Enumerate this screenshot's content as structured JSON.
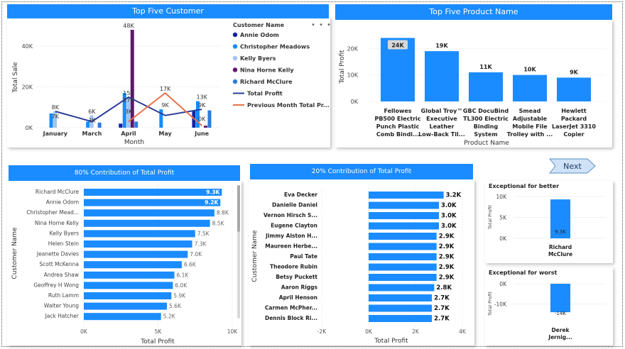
{
  "colors": {
    "accent": "#1a8cff",
    "annie": "#12239e",
    "christopher": "#118dff",
    "kelly": "#a0c4f0",
    "nina": "#5c1a6b",
    "richard": "#2b7be0",
    "total_profit_line": "#2c3e9a",
    "prev_month_line": "#e8704a"
  },
  "top_customer": {
    "title": "Top Five Customer",
    "legend_title": "Customer Name",
    "more_icon": "more-options-icon",
    "chart_data": {
      "type": "bar",
      "categories": [
        "January",
        "March",
        "April",
        "May",
        "June"
      ],
      "xlabel": "Month",
      "ylabel": "Total Sale",
      "ylim": [
        0,
        48000
      ],
      "yticks": [
        "0K",
        "20K",
        "40K"
      ],
      "series": [
        {
          "name": "Annie Odom",
          "values": [
            null,
            null,
            2000,
            null,
            8500
          ]
        },
        {
          "name": "Christopher Meadows",
          "values": [
            7000,
            3000,
            17000,
            9000,
            13000
          ]
        },
        {
          "name": "Kelly Byers",
          "values": [
            8000,
            6000,
            15000,
            null,
            null
          ]
        },
        {
          "name": "Nina Horne Kelly",
          "values": [
            null,
            null,
            48000,
            null,
            1000
          ]
        },
        {
          "name": "Richard McClure",
          "values": [
            null,
            2500,
            3000,
            null,
            8500
          ]
        },
        {
          "name": "Total Profit",
          "type": "line",
          "values": [
            8000,
            3000,
            15000,
            6000,
            9000
          ]
        },
        {
          "name": "Previous Month Total Pr...",
          "type": "line",
          "values": [
            null,
            null,
            3000,
            17000,
            1000
          ]
        }
      ],
      "labels": [
        {
          "text": "8K",
          "cat": 0,
          "y": 8000
        },
        {
          "text": "7K",
          "cat": 0,
          "y": 3500
        },
        {
          "text": "6K",
          "cat": 1,
          "y": 6000
        },
        {
          "text": "3K",
          "cat": 1,
          "y": 1600
        },
        {
          "text": "48K",
          "cat": 2,
          "y": 48000
        },
        {
          "text": "15K",
          "cat": 2,
          "y": 15000
        },
        {
          "text": "17K",
          "cat": 2,
          "y": 11700
        },
        {
          "text": "3K",
          "cat": 2,
          "y": 5900
        },
        {
          "text": "17K",
          "cat": 3,
          "y": 17000
        },
        {
          "text": "9K",
          "cat": 3,
          "y": 9000
        },
        {
          "text": "13K",
          "cat": 4,
          "y": 13000
        },
        {
          "text": "9K",
          "cat": 4,
          "y": 9000
        },
        {
          "text": "0K",
          "cat": 4,
          "y": 2300
        }
      ]
    }
  },
  "top_product": {
    "title": "Top Five Product Name",
    "chart_data": {
      "type": "bar",
      "categories": [
        [
          "Fellowes",
          "PB500 Electric",
          "Punch Plastic",
          "Comb Bindi..."
        ],
        [
          "Global Troy™",
          "Executive",
          "Leather",
          "Low-Back Til..."
        ],
        [
          "GBC DocuBind",
          "TL300 Electric",
          "Binding",
          "System"
        ],
        [
          "Smead",
          "Adjustable",
          "Mobile File",
          "Trolley with ..."
        ],
        [
          "Hewlett",
          "Packard",
          "LaserJet 3310",
          "Copier"
        ]
      ],
      "values": [
        24000,
        19000,
        11000,
        10000,
        9000
      ],
      "value_labels": [
        "24K",
        "19K",
        "11K",
        "10K",
        "9K"
      ],
      "xlabel": "Product Name",
      "ylabel": "Total Profit",
      "ylim": [
        0,
        26000
      ],
      "yticks": [
        {
          "v": 0,
          "t": "0K"
        },
        {
          "v": 10000,
          "t": "10K"
        },
        {
          "v": 20000,
          "t": "20K"
        }
      ]
    }
  },
  "contribution_80": {
    "title": "80% Contribution of Total Profit",
    "chart_data": {
      "type": "bar",
      "orientation": "horizontal",
      "categories": [
        "Richard McClure",
        "Annie Odom",
        "Christopher Mead...",
        "Nina Horne Kelly",
        "Kelly Byers",
        "Helen Stein",
        "Jeanette Davies",
        "Scott McKenna",
        "Andrea Shaw",
        "Geoffrey H Wong",
        "Ruth Lamm",
        "Walter Young",
        "Jack Hatcher"
      ],
      "values": [
        9300,
        9200,
        8800,
        8500,
        7500,
        7300,
        7000,
        6600,
        6100,
        6000,
        5900,
        5600,
        5200
      ],
      "value_labels": [
        "9.3K",
        "9.2K",
        "8.8K",
        "8.5K",
        "7.5K",
        "7.3K",
        "7.0K",
        "6.6K",
        "6.1K",
        "6.0K",
        "5.9K",
        "5.6K",
        "5.2K"
      ],
      "xlabel": "Total Profit",
      "ylabel": "Customer Name",
      "xlim": [
        0,
        10000
      ],
      "xticks": [
        {
          "v": 0,
          "t": "0K"
        },
        {
          "v": 5000,
          "t": "5K"
        },
        {
          "v": 10000,
          "t": "10K"
        }
      ]
    }
  },
  "contribution_20": {
    "title": "20% Contribution of Total Profit",
    "chart_data": {
      "type": "bar",
      "orientation": "horizontal",
      "categories": [
        "Eva Decker",
        "Danielle Daniel",
        "Vernon Hirsch S...",
        "Eugene Clayton",
        "Jimmy Alston H...",
        "Maureen Herbe...",
        "Paul Tate",
        "Theodore Rubin",
        "Betsy Puckett",
        "Aaron Riggs",
        "April Henson",
        "Carmen McPher...",
        "Dennis Block Ri..."
      ],
      "values": [
        3200,
        3000,
        3000,
        3000,
        2900,
        2900,
        2900,
        2900,
        2900,
        2800,
        2700,
        2700,
        2700
      ],
      "value_labels": [
        "3.2K",
        "3.0K",
        "3.0K",
        "3.0K",
        "2.9K",
        "2.9K",
        "2.9K",
        "2.9K",
        "2.9K",
        "2.8K",
        "2.7K",
        "2.7K",
        "2.7K"
      ],
      "xlabel": "Total Profit",
      "ylabel": "Customer Name",
      "xlim": [
        -2000,
        4000
      ],
      "xticks": [
        {
          "v": -2000,
          "t": "-2K"
        },
        {
          "v": 0,
          "t": "0K"
        },
        {
          "v": 2000,
          "t": "2K"
        },
        {
          "v": 4000,
          "t": "4K"
        }
      ]
    }
  },
  "next_button": {
    "label": "Next"
  },
  "exceptional_better": {
    "title": "Exceptional for better",
    "chart_data": {
      "type": "bar",
      "categories": [
        [
          "Richard",
          "McClure"
        ]
      ],
      "values": [
        9300
      ],
      "value_labels": [
        "9.3K"
      ],
      "ylabel": "Total Profit",
      "ylim": [
        0,
        10000
      ],
      "yticks": [
        {
          "v": 0,
          "t": "0K"
        },
        {
          "v": 5000,
          "t": "5K"
        },
        {
          "v": 10000,
          "t": "10K"
        }
      ]
    }
  },
  "exceptional_worst": {
    "title": "Exceptional for worst",
    "chart_data": {
      "type": "bar",
      "categories": [
        [
          "Derek",
          "Jernig..."
        ]
      ],
      "values": [
        -14000
      ],
      "value_labels": [
        "-14K"
      ],
      "ylabel": "Total Profit",
      "ylim": [
        -15000,
        0
      ],
      "yticks": [
        {
          "v": 0,
          "t": "0K"
        },
        {
          "v": -10000,
          "t": "-10K"
        }
      ]
    }
  }
}
